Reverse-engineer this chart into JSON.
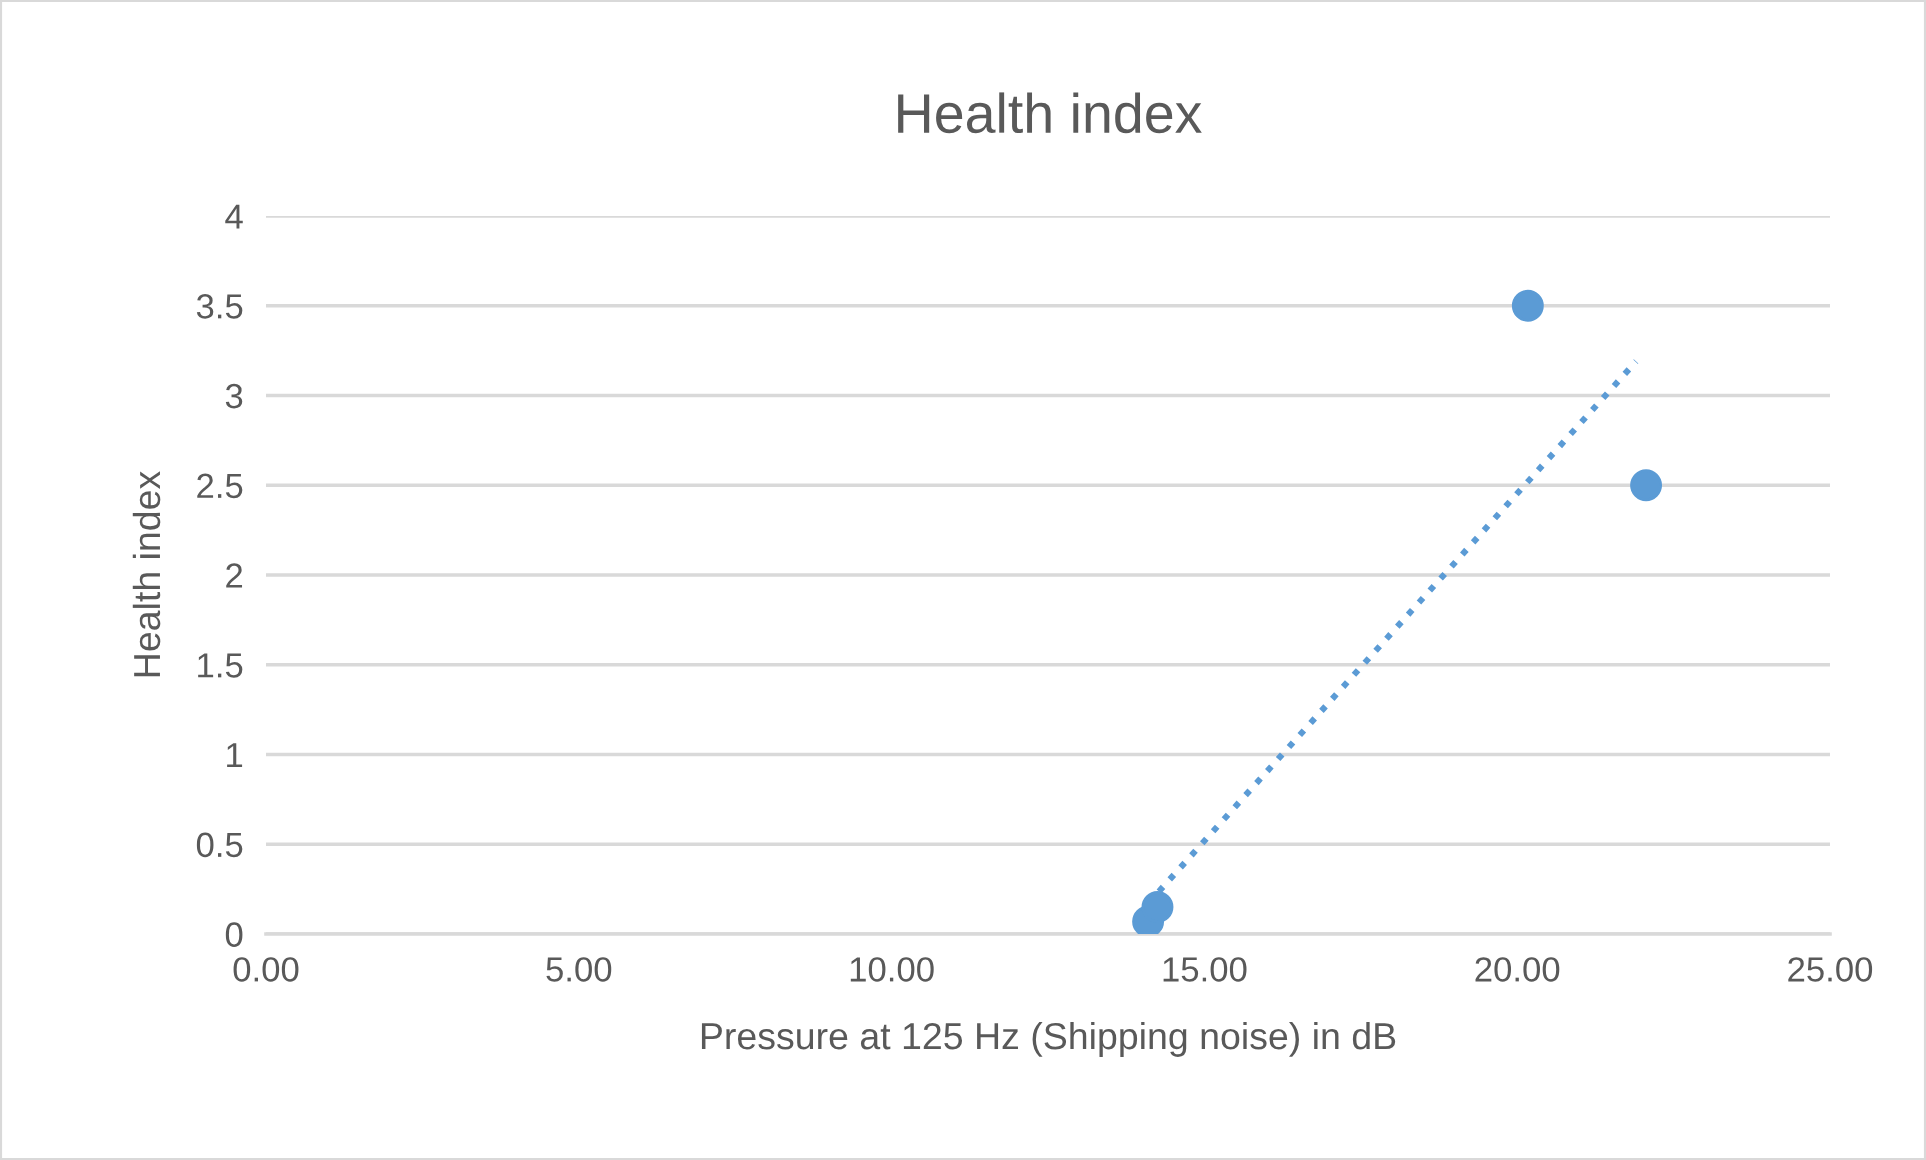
{
  "chart_data": {
    "type": "scatter",
    "title": "Health index",
    "xlabel": "Pressure at 125 Hz (Shipping noise) in dB",
    "ylabel": "Health index",
    "series": [
      {
        "color": "#5b9bd5",
        "x": [
          14.1,
          14.25,
          20.17,
          22.06
        ],
        "values": [
          0.07,
          0.15,
          3.5,
          2.5
        ],
        "marker": "circle"
      },
      {
        "type": "line",
        "color": "#5b9bd5",
        "x": [
          14.1,
          21.9
        ],
        "values": [
          0.17,
          3.19
        ],
        "line_style": "dotted",
        "marker": "none"
      }
    ],
    "xlim": [
      0,
      25
    ],
    "xticks": [
      {
        "value": 0,
        "label": "0.00"
      },
      {
        "value": 5,
        "label": "5.00"
      },
      {
        "value": 10,
        "label": "10.00"
      },
      {
        "value": 15,
        "label": "15.00"
      },
      {
        "value": 20,
        "label": "20.00"
      },
      {
        "value": 25,
        "label": "25.00"
      }
    ],
    "ylim": [
      0,
      4
    ],
    "yticks": [
      0,
      0.5,
      1,
      1.5,
      2,
      2.5,
      3,
      3.5,
      4
    ],
    "grid": "y"
  }
}
